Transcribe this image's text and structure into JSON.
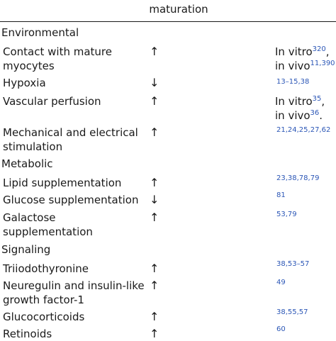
{
  "header": {
    "title": "maturation"
  },
  "rows": {
    "environmental": {
      "label": "Environmental"
    },
    "contact": {
      "factor": "Contact with mature myocytes",
      "arrow": "↑",
      "ref1_text": "In vitro",
      "ref1_sup": "320",
      "ref1_tail": ",",
      "ref2_text": "in vivo",
      "ref2_sup": "11,390"
    },
    "hypoxia": {
      "factor": "Hypoxia",
      "arrow": "↓",
      "refs": "13–15,38"
    },
    "vascular": {
      "factor": "Vascular perfusion",
      "arrow": "↑",
      "ref1_text": "In vitro",
      "ref1_sup": "35",
      "ref1_tail": ",",
      "ref2_text": "in vivo",
      "ref2_sup": "36",
      "ref2_tail": "."
    },
    "mechanical": {
      "factor": "Mechanical and electrical stimulation",
      "arrow": "↑",
      "refs": "21,24,25,27,62"
    },
    "metabolic": {
      "label": "Metabolic"
    },
    "lipid": {
      "factor": "Lipid supplementation",
      "arrow": "↑",
      "refs": "23,38,78,79"
    },
    "glucose": {
      "factor": "Glucose supplementation",
      "arrow": "↓",
      "refs": "81"
    },
    "galactose": {
      "factor": "Galactose supplementation",
      "arrow": "↑",
      "refs": "53,79"
    },
    "signaling": {
      "label": "Signaling"
    },
    "triiodo": {
      "factor": "Triiodothyronine",
      "arrow": "↑",
      "refs": "38,53–57"
    },
    "neuregulin": {
      "factor": "Neuregulin and insulin-like growth factor-1",
      "arrow": "↑",
      "refs": "49"
    },
    "gluco": {
      "factor": "Glucocorticoids",
      "arrow": "↑",
      "refs": "38,55,57"
    },
    "retinoids": {
      "factor": "Retinoids",
      "arrow": "↑",
      "refs": "60"
    }
  }
}
